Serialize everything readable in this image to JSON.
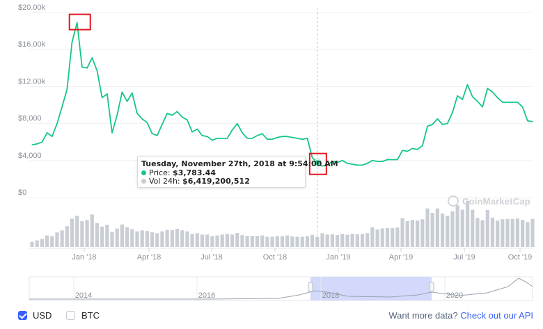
{
  "chart_data": {
    "type": "line",
    "title": "",
    "y_ticks": [
      "$20.00k",
      "$16.00k",
      "$12.00k",
      "$8,000",
      "$4,000",
      "$0"
    ],
    "ylim": [
      0,
      20000
    ],
    "x_ticks": [
      "Jan '18",
      "Apr '18",
      "Jul '18",
      "Oct '18",
      "Jan '19",
      "Apr '19",
      "Jul '19",
      "Oct '19"
    ],
    "series": [
      {
        "name": "Price",
        "color": "#16c784",
        "values": [
          5700,
          5800,
          6000,
          7000,
          6600,
          8000,
          9800,
          11700,
          16800,
          18900,
          14100,
          14000,
          15100,
          13700,
          10800,
          11200,
          7000,
          8900,
          11400,
          10400,
          11300,
          9100,
          8500,
          8100,
          6900,
          6700,
          7900,
          9100,
          8900,
          9300,
          8700,
          8400,
          7100,
          7400,
          6700,
          6600,
          6200,
          6400,
          6400,
          6400,
          7300,
          8000,
          7000,
          6400,
          6400,
          6700,
          6900,
          6300,
          6300,
          6500,
          6600,
          6600,
          6500,
          6400,
          6300,
          6400,
          4300,
          3783,
          3400,
          3500,
          3900,
          3800,
          4000,
          3700,
          3600,
          3500,
          3500,
          3700,
          4000,
          3900,
          3900,
          4100,
          4100,
          4100,
          5100,
          5000,
          5300,
          5200,
          5600,
          7700,
          7900,
          8500,
          7900,
          8000,
          9200,
          11000,
          10600,
          12200,
          10900,
          10400,
          9800,
          11800,
          11400,
          10800,
          10300,
          10300,
          10300,
          10300,
          9800,
          8300,
          8200
        ]
      },
      {
        "name": "Vol 24h",
        "color": "#c9cdd4",
        "values": [
          3.2,
          4.1,
          5.0,
          7.2,
          6.8,
          9.1,
          10.4,
          13.0,
          17.8,
          19.6,
          16.2,
          17.0,
          20.4,
          15.0,
          12.8,
          14.0,
          9.4,
          11.6,
          14.1,
          12.4,
          11.2,
          9.8,
          10.4,
          10.0,
          9.2,
          8.6,
          9.8,
          10.6,
          10.6,
          11.4,
          10.4,
          9.8,
          8.2,
          8.6,
          7.8,
          7.8,
          6.8,
          7.2,
          7.8,
          8.2,
          7.8,
          8.8,
          7.4,
          7.0,
          7.0,
          7.0,
          7.2,
          6.4,
          6.4,
          6.8,
          6.8,
          7.2,
          6.6,
          6.4,
          6.4,
          6.8,
          7.6,
          6.4,
          8.6,
          7.8,
          8.0,
          7.4,
          8.2,
          7.6,
          8.2,
          8.0,
          8.2,
          8.6,
          12.4,
          11.0,
          11.6,
          11.8,
          11.8,
          12.2,
          18.0,
          16.2,
          17.0,
          16.6,
          17.4,
          24.2,
          21.4,
          24.2,
          21.0,
          19.6,
          22.4,
          26.2,
          23.4,
          29.0,
          23.4,
          18.2,
          16.8,
          23.2,
          18.4,
          16.6,
          17.4,
          17.6,
          17.6,
          17.8,
          17.0,
          15.6,
          17.6
        ]
      }
    ],
    "tooltip": {
      "title": "Tuesday, November 27th, 2018 at 9:54:00 AM",
      "price_label": "Price:",
      "price_value": "$3,783.44",
      "vol_label": "Vol 24h:",
      "vol_value": "$6,419,200,512"
    },
    "navigator": {
      "labels": [
        "2014",
        "2016",
        "2018",
        "2020"
      ],
      "selected_range": [
        "2018",
        "2019"
      ]
    },
    "annotations": [
      {
        "type": "red-box",
        "target": "peak",
        "value": 18900
      },
      {
        "type": "red-box",
        "target": "hover-point",
        "value": 3783
      }
    ]
  },
  "watermark": "CoinMarketCap",
  "legend_toggles": [
    {
      "label": "USD",
      "checked": true
    },
    {
      "label": "BTC",
      "checked": false
    }
  ],
  "footer": {
    "prompt": "Want more data?",
    "link": "Check out our API"
  },
  "colors": {
    "price_line": "#16c784",
    "volume_bar": "#c9cdd4",
    "annotation": "#e3161d",
    "navigator_selection": "#cdd5fb",
    "accent": "#3861fb"
  }
}
